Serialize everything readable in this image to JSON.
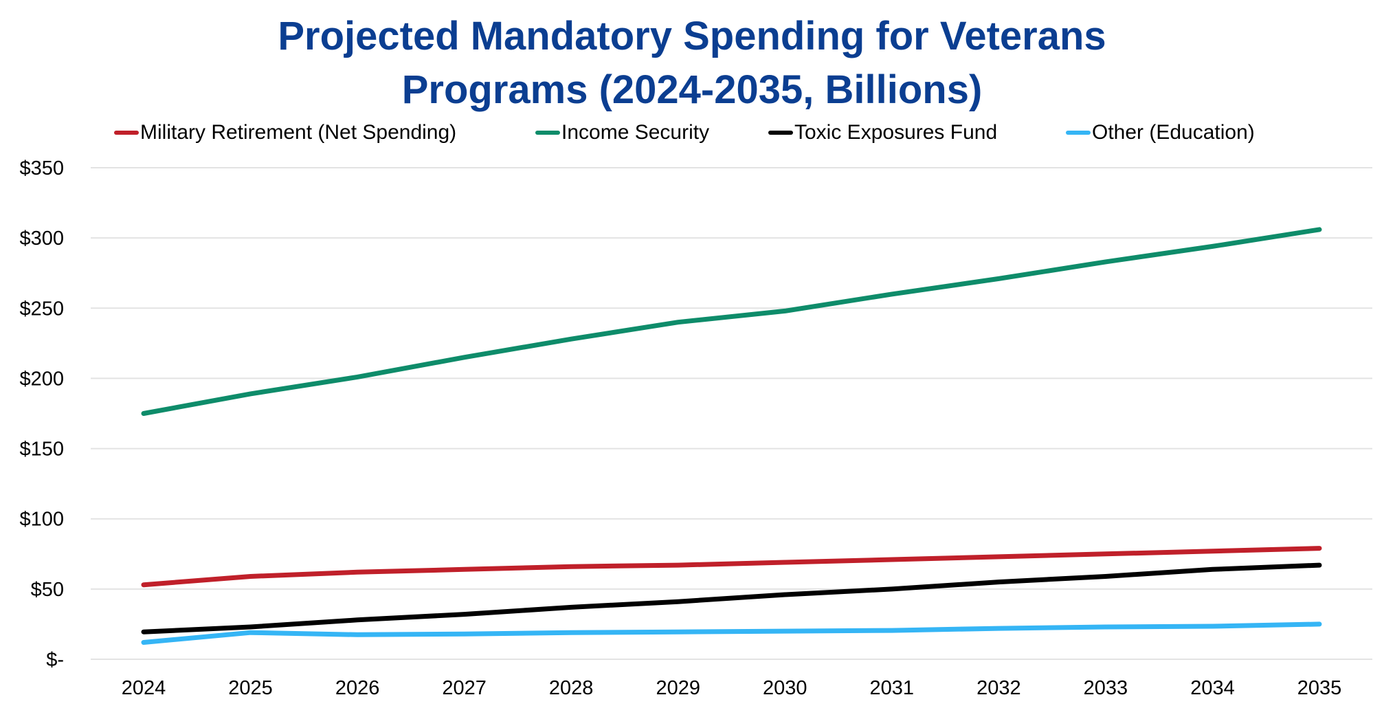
{
  "chart_data": {
    "type": "line",
    "title_lines": [
      "Projected Mandatory Spending for Veterans",
      "Programs (2024-2035, Billions)"
    ],
    "title": "Projected Mandatory Spending for Veterans Programs (2024-2035, Billions)",
    "xlabel": "",
    "ylabel": "",
    "x": [
      "2024",
      "2025",
      "2026",
      "2027",
      "2028",
      "2029",
      "2030",
      "2031",
      "2032",
      "2033",
      "2034",
      "2035"
    ],
    "ylim": [
      0,
      350
    ],
    "yticks": [
      0,
      50,
      100,
      150,
      200,
      250,
      300,
      350
    ],
    "ytick_labels": [
      "$-",
      "$50",
      "$100",
      "$150",
      "$200",
      "$250",
      "$300",
      "$350"
    ],
    "grid": true,
    "legend_position": "top",
    "series": [
      {
        "name": "Military Retirement (Net Spending)",
        "color": "#c0202a",
        "values": [
          53,
          59,
          62,
          64,
          66,
          67,
          69,
          71,
          73,
          75,
          77,
          79
        ]
      },
      {
        "name": "Income Security",
        "color": "#0e8c6a",
        "values": [
          175,
          189,
          201,
          215,
          228,
          240,
          248,
          260,
          271,
          283,
          294,
          306
        ]
      },
      {
        "name": "Toxic Exposures Fund",
        "color": "#000000",
        "values": [
          19.5,
          23,
          28,
          32,
          37,
          41,
          46,
          50,
          55,
          59,
          64,
          67
        ]
      },
      {
        "name": "Other (Education)",
        "color": "#35b5f5",
        "values": [
          12,
          19,
          17.5,
          18,
          19,
          19.5,
          20,
          20.5,
          22,
          23,
          23.5,
          25
        ]
      }
    ]
  }
}
